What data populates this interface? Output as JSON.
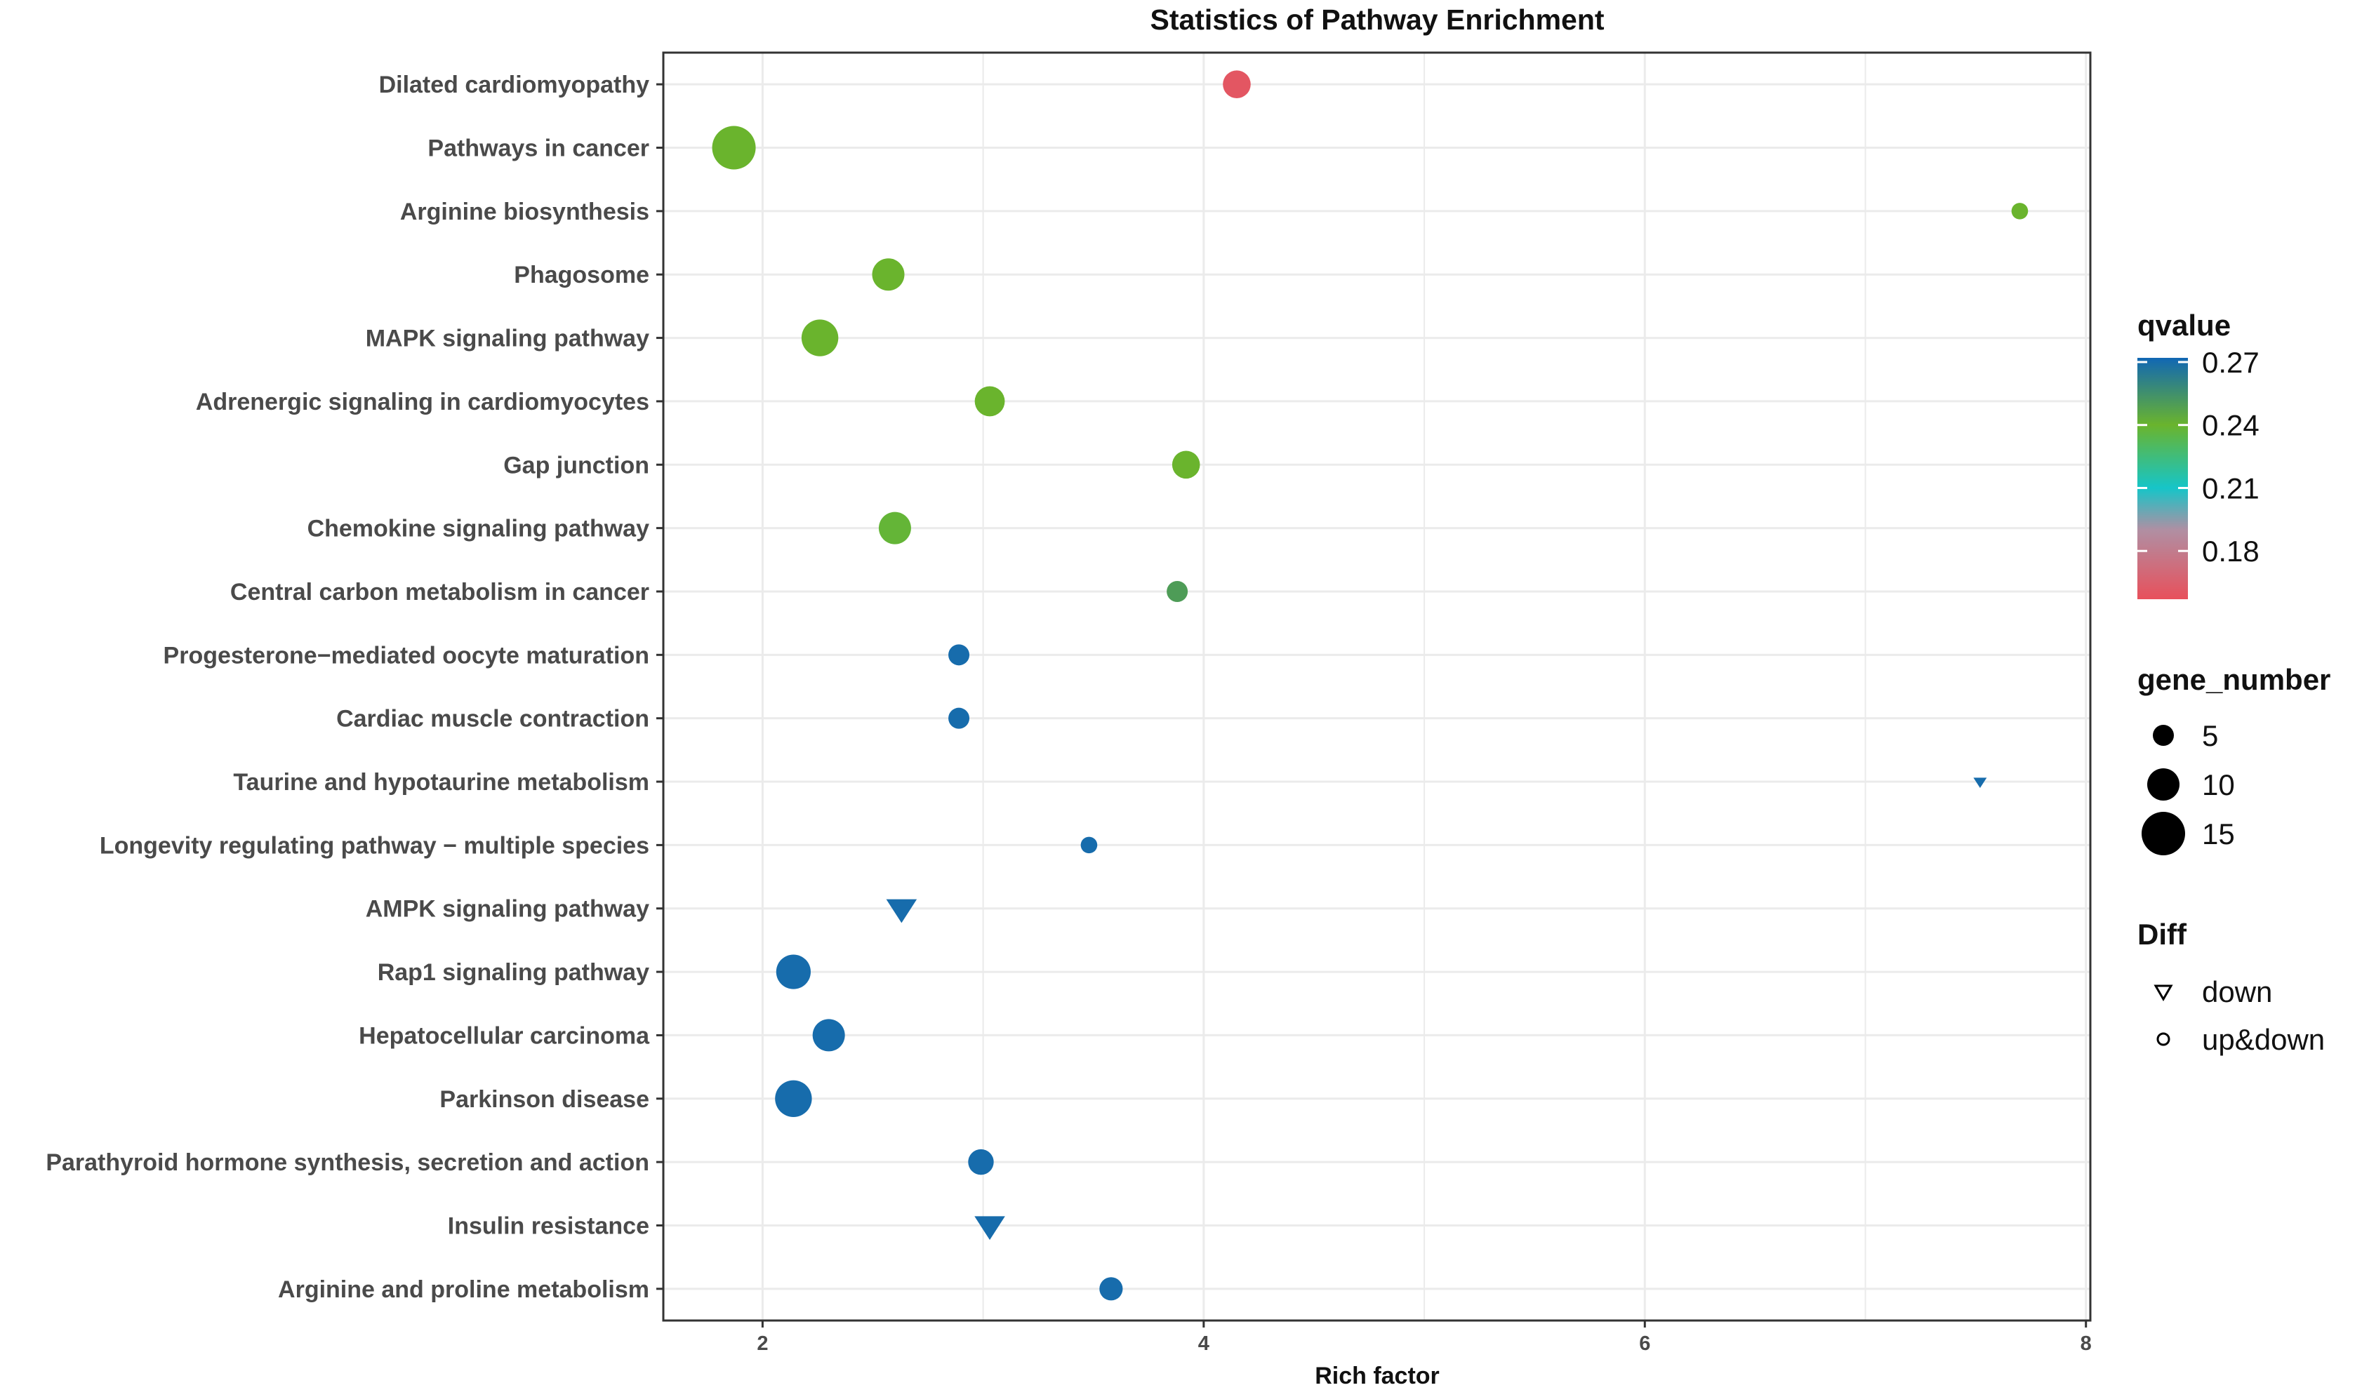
{
  "chart_data": {
    "type": "scatter",
    "title": "Statistics of Pathway Enrichment",
    "xlabel": "Rich factor",
    "ylabel": "",
    "xlim": [
      1.55,
      8.02
    ],
    "xticks": [
      2,
      4,
      6,
      8
    ],
    "grid": true,
    "categories": [
      "Dilated cardiomyopathy",
      "Pathways in cancer",
      "Arginine biosynthesis",
      "Phagosome",
      "MAPK signaling pathway",
      "Adrenergic signaling in cardiomyocytes",
      "Gap junction",
      "Chemokine signaling pathway",
      "Central carbon metabolism in cancer",
      "Progesterone−mediated oocyte maturation",
      "Cardiac muscle contraction",
      "Taurine and hypotaurine metabolism",
      "Longevity regulating pathway − multiple species",
      "AMPK signaling pathway",
      "Rap1 signaling pathway",
      "Hepatocellular carcinoma",
      "Parkinson disease",
      "Parathyroid hormone synthesis, secretion and action",
      "Insulin resistance",
      "Arginine and proline metabolism"
    ],
    "points": [
      {
        "pathway": "Dilated cardiomyopathy",
        "rich_factor": 4.15,
        "qvalue": 0.16,
        "gene_number": 8,
        "diff": "up&down"
      },
      {
        "pathway": "Pathways in cancer",
        "rich_factor": 1.87,
        "qvalue": 0.24,
        "gene_number": 15,
        "diff": "up&down"
      },
      {
        "pathway": "Arginine biosynthesis",
        "rich_factor": 7.7,
        "qvalue": 0.24,
        "gene_number": 3,
        "diff": "up&down"
      },
      {
        "pathway": "Phagosome",
        "rich_factor": 2.57,
        "qvalue": 0.24,
        "gene_number": 10,
        "diff": "up&down"
      },
      {
        "pathway": "MAPK signaling pathway",
        "rich_factor": 2.26,
        "qvalue": 0.24,
        "gene_number": 12,
        "diff": "up&down"
      },
      {
        "pathway": "Adrenergic signaling in cardiomyocytes",
        "rich_factor": 3.03,
        "qvalue": 0.24,
        "gene_number": 9,
        "diff": "up&down"
      },
      {
        "pathway": "Gap junction",
        "rich_factor": 3.92,
        "qvalue": 0.24,
        "gene_number": 8,
        "diff": "up&down"
      },
      {
        "pathway": "Chemokine signaling pathway",
        "rich_factor": 2.6,
        "qvalue": 0.238,
        "gene_number": 10,
        "diff": "up&down"
      },
      {
        "pathway": "Central carbon metabolism in cancer",
        "rich_factor": 3.88,
        "qvalue": 0.25,
        "gene_number": 5,
        "diff": "up&down"
      },
      {
        "pathway": "Progesterone−mediated oocyte maturation",
        "rich_factor": 2.89,
        "qvalue": 0.27,
        "gene_number": 5,
        "diff": "up&down"
      },
      {
        "pathway": "Cardiac muscle contraction",
        "rich_factor": 2.89,
        "qvalue": 0.27,
        "gene_number": 5,
        "diff": "up&down"
      },
      {
        "pathway": "Taurine and hypotaurine metabolism",
        "rich_factor": 7.52,
        "qvalue": 0.27,
        "gene_number": 1,
        "diff": "down"
      },
      {
        "pathway": "Longevity regulating pathway − multiple species",
        "rich_factor": 3.48,
        "qvalue": 0.27,
        "gene_number": 3,
        "diff": "up&down"
      },
      {
        "pathway": "AMPK signaling pathway",
        "rich_factor": 2.63,
        "qvalue": 0.27,
        "gene_number": 8,
        "diff": "down"
      },
      {
        "pathway": "Rap1 signaling pathway",
        "rich_factor": 2.14,
        "qvalue": 0.27,
        "gene_number": 11,
        "diff": "up&down"
      },
      {
        "pathway": "Hepatocellular carcinoma",
        "rich_factor": 2.3,
        "qvalue": 0.27,
        "gene_number": 10,
        "diff": "up&down"
      },
      {
        "pathway": "Parkinson disease",
        "rich_factor": 2.14,
        "qvalue": 0.27,
        "gene_number": 12,
        "diff": "up&down"
      },
      {
        "pathway": "Parathyroid hormone synthesis, secretion and action",
        "rich_factor": 2.99,
        "qvalue": 0.27,
        "gene_number": 7,
        "diff": "up&down"
      },
      {
        "pathway": "Insulin resistance",
        "rich_factor": 3.03,
        "qvalue": 0.27,
        "gene_number": 8,
        "diff": "down"
      },
      {
        "pathway": "Arginine and proline metabolism",
        "rich_factor": 3.58,
        "qvalue": 0.27,
        "gene_number": 6,
        "diff": "up&down"
      }
    ],
    "legend": {
      "placement": "right",
      "color": {
        "title": "qvalue",
        "ticks": [
          "0.27",
          "0.24",
          "0.21",
          "0.18"
        ],
        "tick_values": [
          0.27,
          0.24,
          0.21,
          0.18
        ],
        "range": [
          0.157,
          0.272
        ],
        "stops": [
          {
            "value": 0.157,
            "color": "#e8505b"
          },
          {
            "value": 0.19,
            "color": "#b08fa3"
          },
          {
            "value": 0.21,
            "color": "#16c5c8"
          },
          {
            "value": 0.24,
            "color": "#6ab42d"
          },
          {
            "value": 0.272,
            "color": "#1167b4"
          }
        ]
      },
      "size": {
        "title": "gene_number",
        "entries": [
          {
            "label": "5",
            "value": 5
          },
          {
            "label": "10",
            "value": 10
          },
          {
            "label": "15",
            "value": 15
          }
        ]
      },
      "shape": {
        "title": "Diff",
        "entries": [
          {
            "label": "down",
            "shape": "triangle-down"
          },
          {
            "label": "up&down",
            "shape": "circle"
          }
        ]
      }
    },
    "colors": {
      "grid": "#ebebeb",
      "axis": "#333333",
      "panel_border": "#333333",
      "background": "#ffffff",
      "legend_marker": "#000000"
    }
  }
}
